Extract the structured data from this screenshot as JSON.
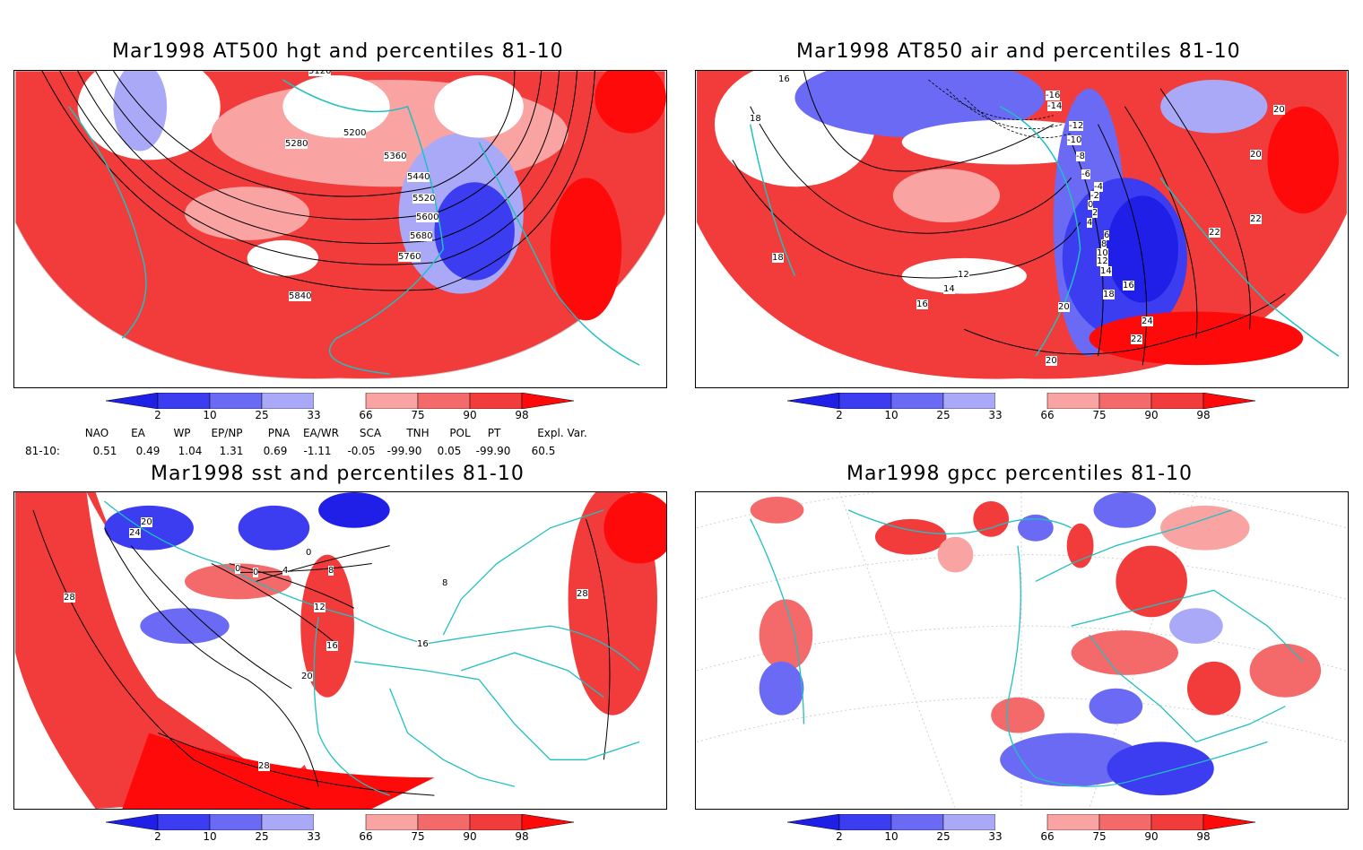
{
  "panels": [
    {
      "title": "Mar1998 AT500 hgt and percentiles 81-10",
      "contour_labels": [
        "5120",
        "5200",
        "5280",
        "5360",
        "5440",
        "5520",
        "5600",
        "5680",
        "5760",
        "5840"
      ]
    },
    {
      "title": "Mar1998 AT850 air and percentiles 81-10",
      "contour_labels": [
        "16",
        "18",
        "18",
        "-16",
        "-14",
        "-12",
        "-10",
        "-8",
        "-6",
        "-4",
        "-2",
        "0",
        "2",
        "4",
        "6",
        "8",
        "10",
        "12",
        "14",
        "16",
        "18",
        "20",
        "20",
        "20",
        "22",
        "22",
        "22",
        "24",
        "12",
        "14",
        "16",
        "20"
      ]
    },
    {
      "title": "Mar1998 sst and percentiles 81-10",
      "contour_labels": [
        "20",
        "24",
        "28",
        "0",
        "0",
        "4",
        "8",
        "12",
        "16",
        "20",
        "28",
        "16",
        "0",
        "8",
        "28"
      ]
    },
    {
      "title": "Mar1998 gpcc percentiles 81-10",
      "contour_labels": []
    }
  ],
  "colorbar": {
    "labels": [
      "2",
      "10",
      "25",
      "33",
      "66",
      "75",
      "90",
      "98"
    ],
    "colors": [
      "#1f1fe8",
      "#3c3cf0",
      "#6a6af5",
      "#a9a9f7",
      "#ffffff",
      "#f9a3a3",
      "#f46a6a",
      "#f23b3b",
      "#ff0a0a"
    ]
  },
  "indices": {
    "headers": [
      "NAO",
      "EA",
      "WP",
      "EP/NP",
      "PNA",
      "EA/WR",
      "SCA",
      "TNH",
      "POL",
      "PT",
      "Expl. Var."
    ],
    "row_label": "81-10:",
    "values": [
      "0.51",
      "0.49",
      "1.04",
      "1.31",
      "0.69",
      "-1.11",
      "-0.05",
      "-99.90",
      "0.05",
      "-99.90",
      "60.5"
    ]
  },
  "colors": {
    "land_outline": "#20c0c0",
    "red_strong": "#ff0a0a",
    "red_mid": "#f23b3b",
    "blue_strong": "#1f1fe8",
    "blue_mid": "#6a6af5"
  }
}
